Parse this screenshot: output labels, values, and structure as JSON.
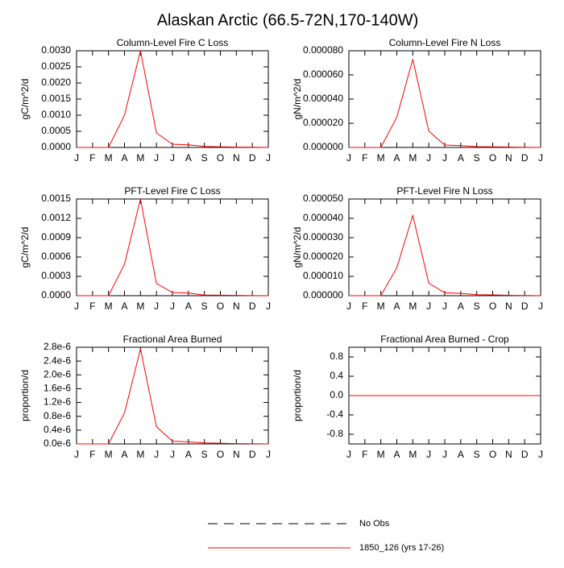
{
  "title": "Alaskan Arctic (66.5-72N,170-140W)",
  "chart_data": [
    {
      "type": "line",
      "title": "Column-Level Fire C Loss",
      "ylabel": "gC/m^2/d",
      "categories": [
        "J",
        "F",
        "M",
        "A",
        "M",
        "J",
        "J",
        "A",
        "S",
        "O",
        "N",
        "D",
        "J"
      ],
      "values": [
        0,
        0,
        0,
        0.001,
        0.003,
        0.00045,
        0.0001,
        8e-05,
        3e-05,
        2e-05,
        1e-05,
        5e-06,
        0
      ],
      "color": "#ff0000",
      "ylim": [
        0,
        0.003
      ],
      "yticks": [
        {
          "value": 0,
          "label": "0.0000"
        },
        {
          "value": 0.0005,
          "label": "0.0005"
        },
        {
          "value": 0.001,
          "label": "0.0010"
        },
        {
          "value": 0.0015,
          "label": "0.0015"
        },
        {
          "value": 0.002,
          "label": "0.0020"
        },
        {
          "value": 0.0025,
          "label": "0.0025"
        },
        {
          "value": 0.003,
          "label": "0.0030"
        }
      ]
    },
    {
      "type": "line",
      "title": "Column-Level Fire N Loss",
      "ylabel": "gN/m^2/d",
      "categories": [
        "J",
        "F",
        "M",
        "A",
        "M",
        "J",
        "J",
        "A",
        "S",
        "O",
        "N",
        "D",
        "J"
      ],
      "values": [
        0,
        0,
        0,
        2.5e-05,
        7.3e-05,
        1.35e-05,
        2e-06,
        1.5e-06,
        7e-07,
        5e-07,
        3e-07,
        1e-07,
        0
      ],
      "color": "#ff0000",
      "ylim": [
        0,
        8e-05
      ],
      "yticks": [
        {
          "value": 0,
          "label": "0.000000"
        },
        {
          "value": 2e-05,
          "label": "0.000020"
        },
        {
          "value": 4e-05,
          "label": "0.000040"
        },
        {
          "value": 6e-05,
          "label": "0.000060"
        },
        {
          "value": 8e-05,
          "label": "0.000080"
        }
      ]
    },
    {
      "type": "line",
      "title": "PFT-Level Fire C Loss",
      "ylabel": "gC/m^2/d",
      "categories": [
        "J",
        "F",
        "M",
        "A",
        "M",
        "J",
        "J",
        "A",
        "S",
        "O",
        "N",
        "D",
        "J"
      ],
      "values": [
        0,
        0,
        0,
        0.00049,
        0.0015,
        0.00019,
        5e-05,
        4e-05,
        1e-05,
        8e-06,
        4e-06,
        2e-06,
        0
      ],
      "color": "#ff0000",
      "ylim": [
        0,
        0.0015
      ],
      "yticks": [
        {
          "value": 0,
          "label": "0.0000"
        },
        {
          "value": 0.0003,
          "label": "0.0003"
        },
        {
          "value": 0.0006,
          "label": "0.0006"
        },
        {
          "value": 0.0009,
          "label": "0.0009"
        },
        {
          "value": 0.0012,
          "label": "0.0012"
        },
        {
          "value": 0.0015,
          "label": "0.0015"
        }
      ]
    },
    {
      "type": "line",
      "title": "PFT-Level Fire N Loss",
      "ylabel": "gN/m^2/d",
      "categories": [
        "J",
        "F",
        "M",
        "A",
        "M",
        "J",
        "J",
        "A",
        "S",
        "O",
        "N",
        "D",
        "J"
      ],
      "values": [
        0,
        0,
        0,
        1.45e-05,
        4.15e-05,
        6.5e-06,
        1.5e-06,
        1.2e-06,
        5e-07,
        4e-07,
        2e-07,
        1e-07,
        0
      ],
      "color": "#ff0000",
      "ylim": [
        0,
        5e-05
      ],
      "yticks": [
        {
          "value": 0,
          "label": "0.000000"
        },
        {
          "value": 1e-05,
          "label": "0.000010"
        },
        {
          "value": 2e-05,
          "label": "0.000020"
        },
        {
          "value": 3e-05,
          "label": "0.000030"
        },
        {
          "value": 4e-05,
          "label": "0.000040"
        },
        {
          "value": 5e-05,
          "label": "0.000050"
        }
      ]
    },
    {
      "type": "line",
      "title": "Fractional Area Burned",
      "ylabel": "proportion/d",
      "categories": [
        "J",
        "F",
        "M",
        "A",
        "M",
        "J",
        "J",
        "A",
        "S",
        "O",
        "N",
        "D",
        "J"
      ],
      "values": [
        0,
        0,
        0,
        9e-07,
        2.75e-06,
        5e-07,
        8e-08,
        6e-08,
        3e-08,
        2e-08,
        1e-08,
        5e-09,
        0
      ],
      "color": "#ff0000",
      "ylim": [
        0,
        2.8e-06
      ],
      "yticks": [
        {
          "value": 0,
          "label": "0.0e-6"
        },
        {
          "value": 4e-07,
          "label": "0.4e-6"
        },
        {
          "value": 8e-07,
          "label": "0.8e-6"
        },
        {
          "value": 1.2e-06,
          "label": "1.2e-6"
        },
        {
          "value": 1.6e-06,
          "label": "1.6e-6"
        },
        {
          "value": 2e-06,
          "label": "2.0e-6"
        },
        {
          "value": 2.4e-06,
          "label": "2.4e-6"
        },
        {
          "value": 2.8e-06,
          "label": "2.8e-6"
        }
      ]
    },
    {
      "type": "line",
      "title": "Fractional Area Burned - Crop",
      "ylabel": "proportion/d",
      "categories": [
        "J",
        "F",
        "M",
        "A",
        "M",
        "J",
        "J",
        "A",
        "S",
        "O",
        "N",
        "D",
        "J"
      ],
      "values": [
        0,
        0,
        0,
        0,
        0,
        0,
        0,
        0,
        0,
        0,
        0,
        0,
        0
      ],
      "color": "#ff0000",
      "ylim": [
        -1,
        1
      ],
      "yticks": [
        -0.8,
        -0.4,
        {
          "value": 0,
          "label": "0.0"
        },
        0.4,
        0.8
      ]
    }
  ],
  "legend": [
    {
      "name": "No Obs",
      "color": "#000000",
      "dashed": true
    },
    {
      "name": "1850_126 (yrs 17-26)",
      "color": "#ff0000",
      "dashed": false
    }
  ]
}
